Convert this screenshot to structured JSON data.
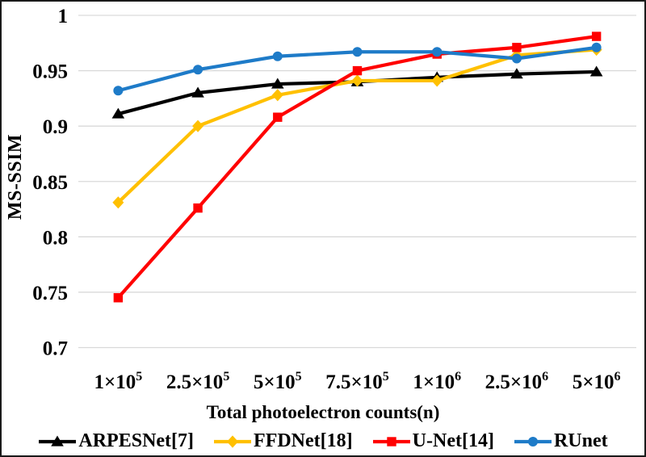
{
  "chart_data": {
    "type": "line",
    "title": "",
    "ylabel": "MS-SSIM",
    "xlabel": "Total photoelectron counts(n)",
    "grid": "horizontal",
    "grid_color": "#D9D9D9",
    "frame_color": "#1A1A1A",
    "background": "#FFFFFF",
    "legend_position": "bottom",
    "ylim": [
      0.7,
      1.0
    ],
    "yticks": [
      {
        "v": 1.0,
        "label": "1"
      },
      {
        "v": 0.95,
        "label": "0.95"
      },
      {
        "v": 0.9,
        "label": "0.9"
      },
      {
        "v": 0.85,
        "label": "0.85"
      },
      {
        "v": 0.8,
        "label": "0.8"
      },
      {
        "v": 0.75,
        "label": "0.75"
      },
      {
        "v": 0.7,
        "label": "0.7"
      }
    ],
    "categories": [
      {
        "base": "1×10",
        "exp": "5"
      },
      {
        "base": "2.5×10",
        "exp": "5"
      },
      {
        "base": "5×10",
        "exp": "5"
      },
      {
        "base": "7.5×10",
        "exp": "5"
      },
      {
        "base": "1×10",
        "exp": "6"
      },
      {
        "base": "2.5×10",
        "exp": "6"
      },
      {
        "base": "5×10",
        "exp": "6"
      }
    ],
    "series": [
      {
        "name": "ARPESNet[7]",
        "marker": "triangle",
        "color": "#000000",
        "values": [
          0.911,
          0.93,
          0.938,
          0.94,
          0.944,
          0.947,
          0.949
        ]
      },
      {
        "name": "FFDNet[18]",
        "marker": "diamond",
        "color": "#FFC000",
        "values": [
          0.831,
          0.9,
          0.928,
          0.941,
          0.941,
          0.964,
          0.969
        ]
      },
      {
        "name": "U-Net[14]",
        "marker": "square",
        "color": "#FF0000",
        "values": [
          0.745,
          0.826,
          0.908,
          0.95,
          0.965,
          0.971,
          0.981
        ]
      },
      {
        "name": "RUnet",
        "marker": "circle",
        "color": "#1E7BC8",
        "values": [
          0.932,
          0.951,
          0.963,
          0.967,
          0.967,
          0.961,
          0.971
        ]
      }
    ]
  }
}
